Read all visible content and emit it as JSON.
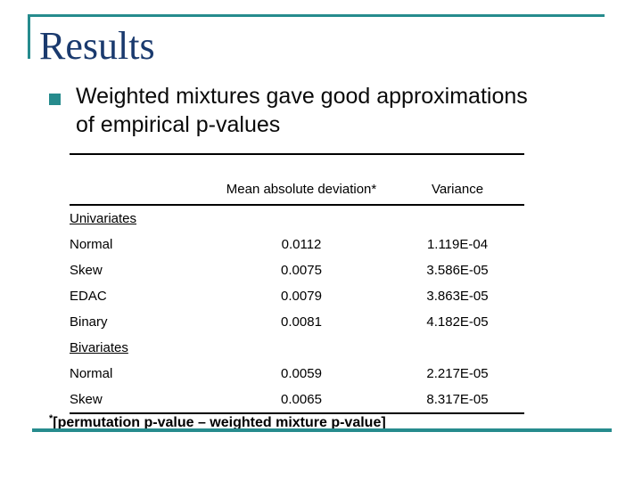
{
  "slide": {
    "title": "Results",
    "accent_teal": "#268b8d",
    "title_color": "#1a3a6e",
    "bullet": {
      "line1": "Weighted mixtures gave good approximations",
      "line2": "of empirical p-values"
    }
  },
  "table": {
    "columns": [
      "",
      "Mean absolute deviation*",
      "Variance"
    ],
    "groups": [
      {
        "label": "Univariates",
        "rows": [
          [
            "Normal",
            "0.0112",
            "1.119E-04"
          ],
          [
            "Skew",
            "0.0075",
            "3.586E-05"
          ],
          [
            "EDAC",
            "0.0079",
            "3.863E-05"
          ],
          [
            "Binary",
            "0.0081",
            "4.182E-05"
          ]
        ]
      },
      {
        "label": "Bivariates",
        "rows": [
          [
            "Normal",
            "0.0059",
            "2.217E-05"
          ],
          [
            "Skew",
            "0.0065",
            "8.317E-05"
          ]
        ]
      }
    ]
  },
  "footnote": {
    "marker": "*",
    "text": "[permutation p-value – weighted mixture p-value]"
  }
}
